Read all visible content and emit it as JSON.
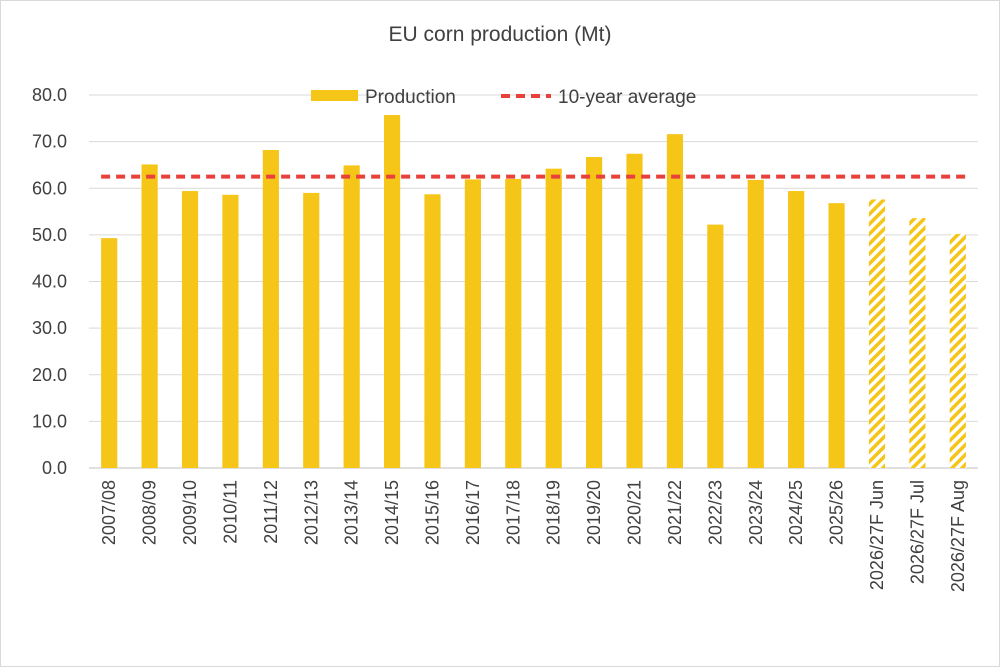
{
  "chart_data": {
    "type": "bar",
    "title": "EU corn production (Mt)",
    "xlabel": "",
    "ylabel": "",
    "ylim": [
      0,
      80
    ],
    "yticks": [
      "0.0",
      "10.0",
      "20.0",
      "30.0",
      "40.0",
      "50.0",
      "60.0",
      "70.0",
      "80.0"
    ],
    "grid": true,
    "legend_position": "top-center",
    "categories": [
      "2007/08",
      "2008/09",
      "2009/10",
      "2010/11",
      "2011/12",
      "2012/13",
      "2013/14",
      "2014/15",
      "2015/16",
      "2016/17",
      "2017/18",
      "2018/19",
      "2019/20",
      "2020/21",
      "2021/22",
      "2022/23",
      "2023/24",
      "2024/25",
      "2025/26",
      "2026/27F Jun",
      "2026/27F Jul",
      "2026/27F Aug"
    ],
    "series": [
      {
        "name": "Production",
        "type": "bar",
        "color": "#F5C518",
        "values": [
          49.3,
          65.1,
          59.4,
          58.6,
          68.2,
          59.0,
          64.9,
          75.7,
          58.7,
          61.9,
          62.0,
          64.2,
          66.7,
          67.4,
          71.6,
          52.2,
          61.8,
          59.4,
          56.8,
          57.6,
          53.6,
          50.2
        ],
        "forecast_hatched": [
          false,
          false,
          false,
          false,
          false,
          false,
          false,
          false,
          false,
          false,
          false,
          false,
          false,
          false,
          false,
          false,
          false,
          false,
          false,
          true,
          true,
          true
        ]
      },
      {
        "name": "10-year average",
        "type": "line",
        "style": "dashed",
        "color": "#E8413B",
        "value": 62.5
      }
    ]
  }
}
